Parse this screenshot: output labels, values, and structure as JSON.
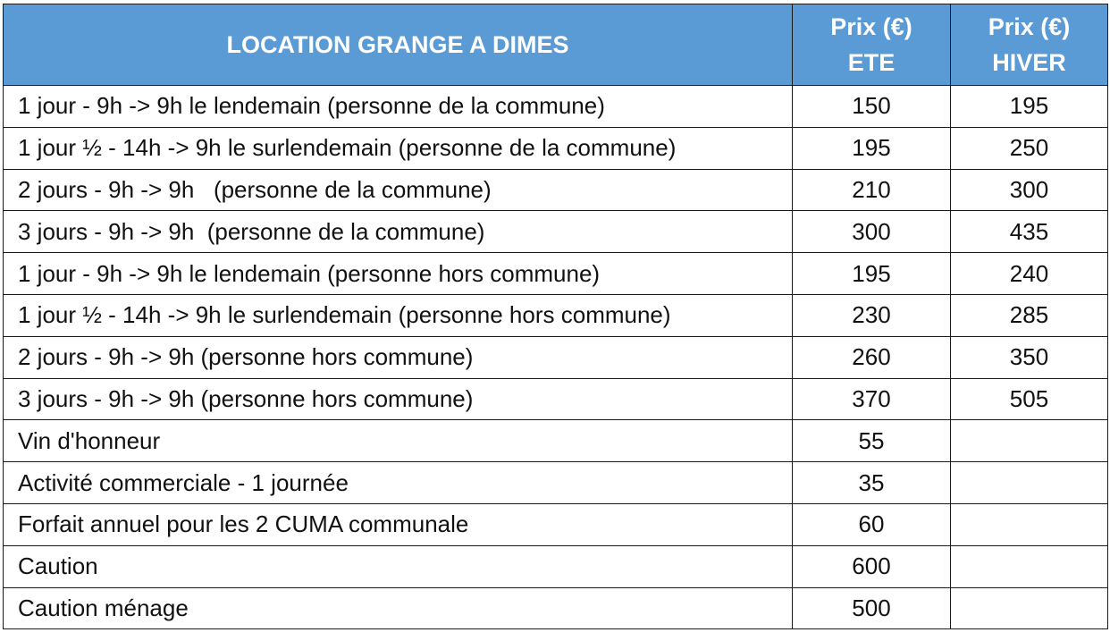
{
  "header": {
    "title": "LOCATION GRANGE A DIMES",
    "col_ete_line1": "Prix (€)",
    "col_ete_line2": "ETE",
    "col_hiver_line1": "Prix (€)",
    "col_hiver_line2": "HIVER"
  },
  "rows": [
    {
      "label": "1 jour - 9h -> 9h le lendemain (personne de la commune)",
      "ete": "150",
      "hiver": "195"
    },
    {
      "label": "1 jour ½ - 14h -> 9h le surlendemain (personne de la commune)",
      "ete": "195",
      "hiver": "250"
    },
    {
      "label": "2 jours - 9h -> 9h   (personne de la commune)",
      "ete": "210",
      "hiver": "300"
    },
    {
      "label": "3 jours - 9h -> 9h  (personne de la commune)",
      "ete": "300",
      "hiver": "435"
    },
    {
      "label": "1 jour - 9h -> 9h le lendemain (personne hors commune)",
      "ete": "195",
      "hiver": "240"
    },
    {
      "label": "1 jour ½ - 14h -> 9h le surlendemain (personne hors commune)",
      "ete": "230",
      "hiver": "285"
    },
    {
      "label": "2 jours - 9h -> 9h (personne hors commune)",
      "ete": "260",
      "hiver": "350"
    },
    {
      "label": "3 jours - 9h -> 9h (personne hors commune)",
      "ete": "370",
      "hiver": "505"
    },
    {
      "label": "Vin d'honneur",
      "ete": "55",
      "hiver": ""
    },
    {
      "label": "Activité commerciale - 1 journée",
      "ete": "35",
      "hiver": ""
    },
    {
      "label": "Forfait annuel pour les 2 CUMA communale",
      "ete": "60",
      "hiver": ""
    },
    {
      "label": "Caution",
      "ete": "600",
      "hiver": ""
    },
    {
      "label": "Caution ménage",
      "ete": "500",
      "hiver": ""
    }
  ],
  "colors": {
    "header_bg": "#5b9bd5",
    "header_text": "#ffffff",
    "border": "#1a1a1a"
  }
}
